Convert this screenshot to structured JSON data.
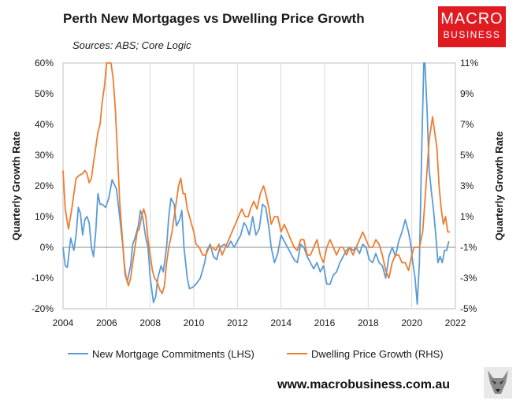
{
  "title": "Perth New Mortgages vs Dwelling Price Growth",
  "source": "Sources: ABS; Core Logic",
  "logo": {
    "line1": "MACRO",
    "line2": "BUSINESS"
  },
  "website": "www.macrobusiness.com.au",
  "colors": {
    "mortgages": "#5b9bd5",
    "prices": "#ed7d31",
    "logo": "#e11b22"
  },
  "chart_data": {
    "type": "line",
    "ylabel": "Quarterly  Growth Rate",
    "y2label": "Quarterly Growth Rate",
    "xlim": [
      2004,
      2022
    ],
    "ylim": [
      -20,
      60
    ],
    "y2lim": [
      -5,
      11
    ],
    "xticks": [
      "2004",
      "2006",
      "2008",
      "2010",
      "2012",
      "2014",
      "2016",
      "2018",
      "2020",
      "2022"
    ],
    "yticks": [
      "-20%",
      "-10%",
      "0%",
      "10%",
      "20%",
      "30%",
      "40%",
      "50%",
      "60%"
    ],
    "y2ticks": [
      "-5%",
      "-3%",
      "-1%",
      "1%",
      "3%",
      "5%",
      "7%",
      "9%",
      "11%"
    ],
    "grid": "vertical",
    "legend_position": "bottom",
    "series": [
      {
        "name": "New Mortgage Commitments (LHS)",
        "axis": "left",
        "points": [
          [
            2004.0,
            0
          ],
          [
            2004.1,
            -6
          ],
          [
            2004.2,
            -6.5
          ],
          [
            2004.35,
            3
          ],
          [
            2004.5,
            -1
          ],
          [
            2004.6,
            4
          ],
          [
            2004.7,
            13
          ],
          [
            2004.8,
            11
          ],
          [
            2004.9,
            4
          ],
          [
            2005.0,
            9
          ],
          [
            2005.1,
            10
          ],
          [
            2005.2,
            8
          ],
          [
            2005.3,
            0
          ],
          [
            2005.4,
            -3
          ],
          [
            2005.5,
            5
          ],
          [
            2005.6,
            17.5
          ],
          [
            2005.7,
            14
          ],
          [
            2005.8,
            14
          ],
          [
            2005.95,
            13
          ],
          [
            2006.1,
            16
          ],
          [
            2006.25,
            22
          ],
          [
            2006.45,
            19
          ],
          [
            2006.6,
            10
          ],
          [
            2006.75,
            0
          ],
          [
            2006.85,
            -9
          ],
          [
            2006.95,
            -11
          ],
          [
            2007.1,
            -6
          ],
          [
            2007.2,
            1
          ],
          [
            2007.3,
            3
          ],
          [
            2007.45,
            7
          ],
          [
            2007.55,
            12
          ],
          [
            2007.65,
            10
          ],
          [
            2007.8,
            3
          ],
          [
            2007.9,
            0
          ],
          [
            2008.0,
            -10
          ],
          [
            2008.15,
            -18
          ],
          [
            2008.25,
            -16
          ],
          [
            2008.35,
            -10
          ],
          [
            2008.5,
            -6
          ],
          [
            2008.6,
            -8
          ],
          [
            2008.75,
            0
          ],
          [
            2008.85,
            10
          ],
          [
            2008.95,
            16
          ],
          [
            2009.1,
            14
          ],
          [
            2009.2,
            7
          ],
          [
            2009.35,
            9
          ],
          [
            2009.45,
            12
          ],
          [
            2009.55,
            0
          ],
          [
            2009.7,
            -10
          ],
          [
            2009.8,
            -13.5
          ],
          [
            2009.95,
            -13
          ],
          [
            2010.1,
            -12
          ],
          [
            2010.3,
            -10
          ],
          [
            2010.5,
            -5
          ],
          [
            2010.6,
            -1
          ],
          [
            2010.75,
            1
          ],
          [
            2010.9,
            -3
          ],
          [
            2011.05,
            -4
          ],
          [
            2011.2,
            0
          ],
          [
            2011.4,
            1
          ],
          [
            2011.55,
            0
          ],
          [
            2011.7,
            2
          ],
          [
            2011.85,
            0
          ],
          [
            2012.0,
            2
          ],
          [
            2012.15,
            4
          ],
          [
            2012.3,
            8
          ],
          [
            2012.4,
            7
          ],
          [
            2012.55,
            4
          ],
          [
            2012.7,
            10
          ],
          [
            2012.85,
            4
          ],
          [
            2013.0,
            6
          ],
          [
            2013.15,
            14
          ],
          [
            2013.3,
            13
          ],
          [
            2013.45,
            6
          ],
          [
            2013.55,
            0
          ],
          [
            2013.7,
            -5
          ],
          [
            2013.85,
            -2
          ],
          [
            2014.0,
            4
          ],
          [
            2014.15,
            2
          ],
          [
            2014.3,
            0
          ],
          [
            2014.45,
            -2
          ],
          [
            2014.6,
            -4
          ],
          [
            2014.75,
            -5
          ],
          [
            2014.9,
            1
          ],
          [
            2015.05,
            0
          ],
          [
            2015.2,
            -3
          ],
          [
            2015.35,
            -5
          ],
          [
            2015.5,
            -7
          ],
          [
            2015.65,
            -5
          ],
          [
            2015.8,
            -8
          ],
          [
            2015.95,
            -6
          ],
          [
            2016.1,
            -12
          ],
          [
            2016.25,
            -12
          ],
          [
            2016.4,
            -9
          ],
          [
            2016.55,
            -8
          ],
          [
            2016.7,
            -5
          ],
          [
            2016.85,
            -3
          ],
          [
            2017.0,
            -1
          ],
          [
            2017.15,
            0
          ],
          [
            2017.3,
            -1
          ],
          [
            2017.45,
            0
          ],
          [
            2017.6,
            -2
          ],
          [
            2017.75,
            1
          ],
          [
            2017.9,
            0
          ],
          [
            2018.05,
            -4
          ],
          [
            2018.2,
            -5
          ],
          [
            2018.35,
            -2
          ],
          [
            2018.5,
            -5
          ],
          [
            2018.65,
            -6
          ],
          [
            2018.8,
            -10
          ],
          [
            2018.95,
            -3
          ],
          [
            2019.1,
            0
          ],
          [
            2019.25,
            -3
          ],
          [
            2019.4,
            2
          ],
          [
            2019.55,
            5
          ],
          [
            2019.7,
            9
          ],
          [
            2019.85,
            5
          ],
          [
            2019.95,
            1
          ],
          [
            2020.05,
            -5
          ],
          [
            2020.15,
            -10
          ],
          [
            2020.25,
            -18.5
          ],
          [
            2020.35,
            -5
          ],
          [
            2020.45,
            30
          ],
          [
            2020.55,
            60
          ],
          [
            2020.6,
            62
          ],
          [
            2020.7,
            45
          ],
          [
            2020.8,
            25
          ],
          [
            2020.9,
            18
          ],
          [
            2021.0,
            12
          ],
          [
            2021.1,
            4
          ],
          [
            2021.2,
            -5
          ],
          [
            2021.3,
            -3
          ],
          [
            2021.4,
            -5
          ],
          [
            2021.5,
            -1
          ],
          [
            2021.6,
            -1
          ],
          [
            2021.7,
            2
          ]
        ]
      },
      {
        "name": "Dwelling Price Growth (RHS)",
        "axis": "right",
        "points": [
          [
            2004.0,
            4
          ],
          [
            2004.1,
            1.5
          ],
          [
            2004.25,
            0.2
          ],
          [
            2004.4,
            1.5
          ],
          [
            2004.5,
            2.5
          ],
          [
            2004.6,
            3.5
          ],
          [
            2004.75,
            3.7
          ],
          [
            2004.9,
            3.8
          ],
          [
            2005.0,
            4
          ],
          [
            2005.1,
            3.8
          ],
          [
            2005.2,
            3.2
          ],
          [
            2005.3,
            3.5
          ],
          [
            2005.4,
            4.5
          ],
          [
            2005.5,
            5.5
          ],
          [
            2005.6,
            6.5
          ],
          [
            2005.7,
            7
          ],
          [
            2005.8,
            8.5
          ],
          [
            2005.9,
            9.5
          ],
          [
            2006.0,
            11
          ],
          [
            2006.1,
            11.5
          ],
          [
            2006.2,
            11
          ],
          [
            2006.3,
            10
          ],
          [
            2006.4,
            8
          ],
          [
            2006.5,
            5
          ],
          [
            2006.6,
            2
          ],
          [
            2006.7,
            0
          ],
          [
            2006.8,
            -2
          ],
          [
            2006.9,
            -3
          ],
          [
            2007.0,
            -3.5
          ],
          [
            2007.1,
            -3
          ],
          [
            2007.2,
            -2
          ],
          [
            2007.3,
            -1
          ],
          [
            2007.4,
            0
          ],
          [
            2007.5,
            0.2
          ],
          [
            2007.6,
            1
          ],
          [
            2007.7,
            1.5
          ],
          [
            2007.8,
            1
          ],
          [
            2007.9,
            -0.5
          ],
          [
            2008.0,
            -1.5
          ],
          [
            2008.1,
            -2.5
          ],
          [
            2008.2,
            -3
          ],
          [
            2008.3,
            -3.2
          ],
          [
            2008.45,
            -3.8
          ],
          [
            2008.55,
            -4
          ],
          [
            2008.65,
            -3.5
          ],
          [
            2008.75,
            -2
          ],
          [
            2008.85,
            -1
          ],
          [
            2009.0,
            0
          ],
          [
            2009.1,
            1
          ],
          [
            2009.2,
            2
          ],
          [
            2009.3,
            3
          ],
          [
            2009.4,
            3.5
          ],
          [
            2009.5,
            2.5
          ],
          [
            2009.6,
            2.5
          ],
          [
            2009.7,
            1.5
          ],
          [
            2009.8,
            1
          ],
          [
            2009.9,
            0.5
          ],
          [
            2010.0,
            0
          ],
          [
            2010.1,
            -0.8
          ],
          [
            2010.25,
            -1
          ],
          [
            2010.4,
            -1.5
          ],
          [
            2010.55,
            -1.5
          ],
          [
            2010.7,
            -1
          ],
          [
            2010.85,
            -1
          ],
          [
            2011.0,
            -1.2
          ],
          [
            2011.15,
            -0.8
          ],
          [
            2011.3,
            -1.5
          ],
          [
            2011.45,
            -1
          ],
          [
            2011.6,
            -0.5
          ],
          [
            2011.75,
            0
          ],
          [
            2011.9,
            0.5
          ],
          [
            2012.05,
            1
          ],
          [
            2012.2,
            1.5
          ],
          [
            2012.35,
            1
          ],
          [
            2012.5,
            1
          ],
          [
            2012.6,
            1.5
          ],
          [
            2012.75,
            2
          ],
          [
            2012.9,
            1.5
          ],
          [
            2013.05,
            2.5
          ],
          [
            2013.2,
            3
          ],
          [
            2013.3,
            2.5
          ],
          [
            2013.45,
            1.5
          ],
          [
            2013.55,
            0.5
          ],
          [
            2013.7,
            1
          ],
          [
            2013.85,
            1
          ],
          [
            2014.0,
            0
          ],
          [
            2014.15,
            0.5
          ],
          [
            2014.3,
            0
          ],
          [
            2014.45,
            -0.5
          ],
          [
            2014.6,
            -1
          ],
          [
            2014.75,
            -1.2
          ],
          [
            2014.9,
            -0.5
          ],
          [
            2015.05,
            -0.5
          ],
          [
            2015.2,
            -1.5
          ],
          [
            2015.35,
            -1.5
          ],
          [
            2015.5,
            -1
          ],
          [
            2015.65,
            -0.5
          ],
          [
            2015.8,
            -1.5
          ],
          [
            2015.95,
            -2
          ],
          [
            2016.1,
            -1
          ],
          [
            2016.25,
            -0.5
          ],
          [
            2016.4,
            -1
          ],
          [
            2016.55,
            -1.5
          ],
          [
            2016.7,
            -1
          ],
          [
            2016.85,
            -1
          ],
          [
            2017.0,
            -1.5
          ],
          [
            2017.15,
            -1
          ],
          [
            2017.3,
            -1.5
          ],
          [
            2017.45,
            -1
          ],
          [
            2017.6,
            -0.5
          ],
          [
            2017.75,
            0
          ],
          [
            2017.9,
            -0.5
          ],
          [
            2018.05,
            -1
          ],
          [
            2018.2,
            -1
          ],
          [
            2018.35,
            -0.5
          ],
          [
            2018.5,
            -0.8
          ],
          [
            2018.65,
            -1.5
          ],
          [
            2018.8,
            -2.5
          ],
          [
            2018.95,
            -3
          ],
          [
            2019.1,
            -2
          ],
          [
            2019.25,
            -1.5
          ],
          [
            2019.4,
            -1.5
          ],
          [
            2019.55,
            -2
          ],
          [
            2019.7,
            -2
          ],
          [
            2019.85,
            -2.5
          ],
          [
            2020.0,
            -1.5
          ],
          [
            2020.1,
            -1
          ],
          [
            2020.2,
            -1
          ],
          [
            2020.35,
            -1
          ],
          [
            2020.5,
            0
          ],
          [
            2020.6,
            2
          ],
          [
            2020.7,
            4
          ],
          [
            2020.8,
            6
          ],
          [
            2020.9,
            7
          ],
          [
            2020.95,
            7.5
          ],
          [
            2021.05,
            6.5
          ],
          [
            2021.15,
            5.5
          ],
          [
            2021.25,
            3
          ],
          [
            2021.35,
            1.5
          ],
          [
            2021.45,
            0.5
          ],
          [
            2021.55,
            1
          ],
          [
            2021.65,
            0
          ],
          [
            2021.75,
            0
          ]
        ]
      }
    ]
  }
}
